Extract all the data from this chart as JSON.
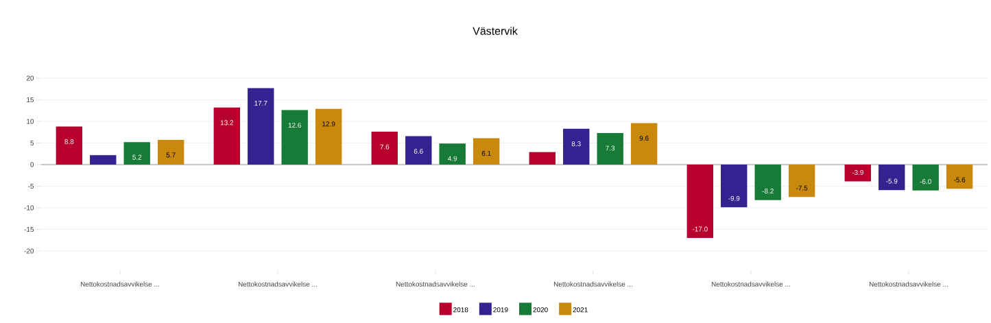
{
  "chart_data": {
    "type": "bar",
    "title": "Västervik",
    "categories": [
      "Nettokostnadsavvikelse ...",
      "Nettokostnadsavvikelse ...",
      "Nettokostnadsavvikelse ...",
      "Nettokostnadsavvikelse ...",
      "Nettokostnadsavvikelse ...",
      "Nettokostnadsavvikelse ..."
    ],
    "series": [
      {
        "name": "2018",
        "color": "#b8002e",
        "values": [
          8.8,
          13.2,
          7.6,
          2.9,
          -17.0,
          -3.9
        ],
        "value_labels": [
          "8.8",
          "13.2",
          "7.6",
          null,
          "-17.0",
          "-3.9"
        ]
      },
      {
        "name": "2019",
        "color": "#35218f",
        "values": [
          2.2,
          17.7,
          6.6,
          8.3,
          -9.9,
          -5.9
        ],
        "value_labels": [
          null,
          "17.7",
          "6.6",
          "8.3",
          "-9.9",
          "-5.9"
        ]
      },
      {
        "name": "2020",
        "color": "#177a36",
        "values": [
          5.2,
          12.6,
          4.9,
          7.3,
          -8.2,
          -6.0
        ],
        "value_labels": [
          "5.2",
          "12.6",
          "4.9",
          "7.3",
          "-8.2",
          "-6.0"
        ]
      },
      {
        "name": "2021",
        "color": "#c8890d",
        "values": [
          5.7,
          12.9,
          6.1,
          9.6,
          -7.5,
          -5.6
        ],
        "value_labels": [
          "5.7",
          "12.9",
          "6.1",
          "9.6",
          "-7.5",
          "-5.6"
        ]
      }
    ],
    "ylim": [
      -20,
      20
    ],
    "yticks": [
      -20,
      -15,
      -10,
      -5,
      0,
      5,
      10,
      15,
      20
    ],
    "grid": "y",
    "legend": "bottom"
  }
}
